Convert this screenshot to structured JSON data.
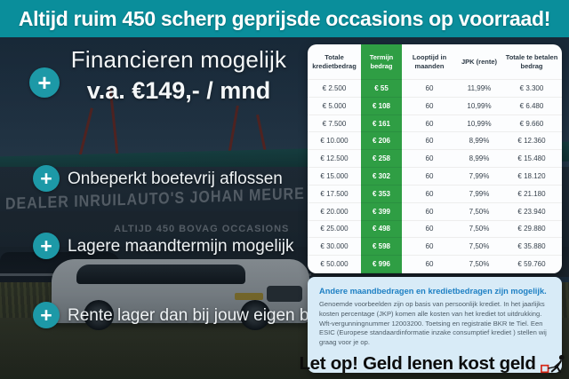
{
  "banner": {
    "text": "Altijd ruim 450 scherp geprijsde occasions op voorraad!"
  },
  "usp": {
    "plus_symbol": "+",
    "headline_line1": "Financieren mogelijk",
    "headline_line2": "v.a. €149,- / mnd",
    "items": [
      "Onbeperkt boetevrij aflossen",
      "Lagere maandtermijn mogelijk",
      "Rente lager dan bij jouw eigen bank"
    ]
  },
  "background": {
    "sign_line1": "DEALER INRUILAUTO'S JOHAN MEURE",
    "sign_line2": "ALTIJD 450 BOVAG OCCASIONS"
  },
  "finance_table": {
    "type": "table",
    "columns": [
      "Totale kredietbedrag",
      "Termijn bedrag",
      "Looptijd in maanden",
      "JPK (rente)",
      "Totale te betalen bedrag"
    ],
    "rows": [
      [
        "€ 2.500",
        "€ 55",
        "60",
        "11,99%",
        "€ 3.300"
      ],
      [
        "€ 5.000",
        "€ 108",
        "60",
        "10,99%",
        "€ 6.480"
      ],
      [
        "€ 7.500",
        "€ 161",
        "60",
        "10,99%",
        "€ 9.660"
      ],
      [
        "€ 10.000",
        "€ 206",
        "60",
        "8,99%",
        "€ 12.360"
      ],
      [
        "€ 12.500",
        "€ 258",
        "60",
        "8,99%",
        "€ 15.480"
      ],
      [
        "€ 15.000",
        "€ 302",
        "60",
        "7,99%",
        "€ 18.120"
      ],
      [
        "€ 17.500",
        "€ 353",
        "60",
        "7,99%",
        "€ 21.180"
      ],
      [
        "€ 20.000",
        "€ 399",
        "60",
        "7,50%",
        "€ 23.940"
      ],
      [
        "€ 25.000",
        "€ 498",
        "60",
        "7,50%",
        "€ 29.880"
      ],
      [
        "€ 30.000",
        "€ 598",
        "60",
        "7,50%",
        "€ 35.880"
      ],
      [
        "€ 50.000",
        "€ 996",
        "60",
        "7,50%",
        "€ 59.760"
      ]
    ]
  },
  "info_card": {
    "heading": "Andere maandbedragen en kredietbedragen zijn mogelijk.",
    "body": "Genoemde voorbeelden zijn op basis van persoonlijk krediet. In het jaarlijks kosten percentage (JKP) komen alle kosten van het krediet tot uitdrukking. Wft-vergunningnummer 12003200. Toetsing en registratie BKR te Tiel. Een ESIC (Europese standaardinformatie inzake consumptief krediet ) stellen wij graag voor je op.",
    "warning": "Let op! Geld lenen kost geld"
  },
  "colors": {
    "banner_teal": "#0a8e9b",
    "plus_circle_teal": "#1d99a7",
    "table_green": "#2f9e44",
    "info_card_blue": "#d8ebf7",
    "info_heading_blue": "#1e80c4",
    "warning_red": "#d62717",
    "overlay_navy": "#0d1925"
  }
}
